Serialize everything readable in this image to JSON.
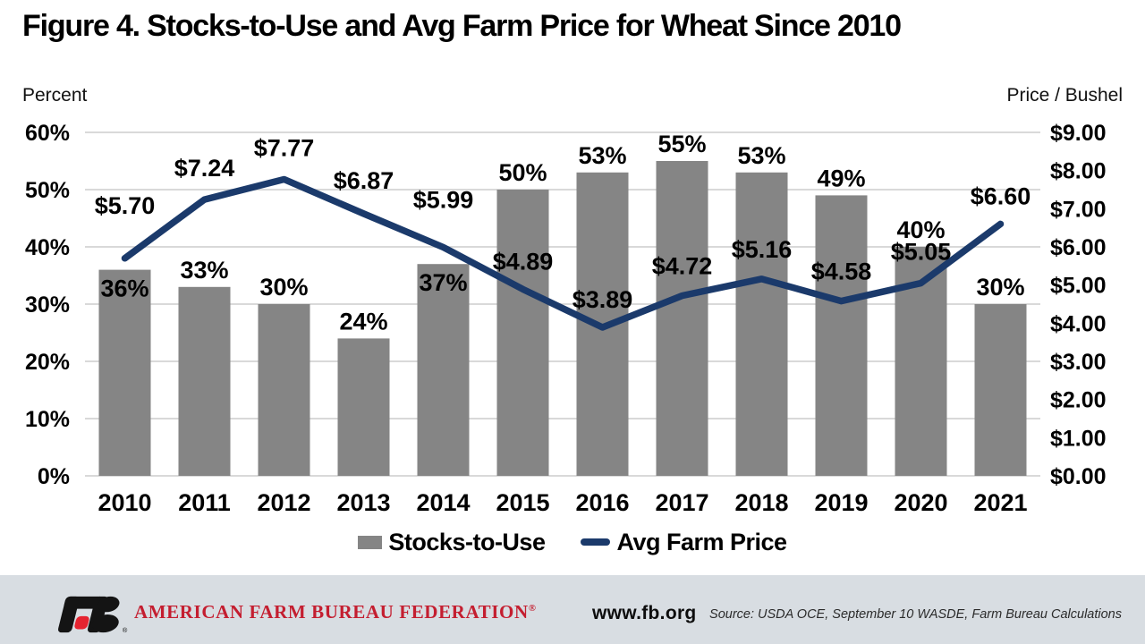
{
  "title": "Figure 4. Stocks-to-Use and Avg Farm Price for Wheat Since 2010",
  "axes": {
    "left_unit": "Percent",
    "right_unit": "Price / Bushel",
    "left_ticks": [
      "60%",
      "50%",
      "40%",
      "30%",
      "20%",
      "10%",
      "0%"
    ],
    "right_ticks": [
      "$9.00",
      "$8.00",
      "$7.00",
      "$6.00",
      "$5.00",
      "$4.00",
      "$3.00",
      "$2.00",
      "$1.00",
      "$0.00"
    ]
  },
  "chart_data": {
    "type": "bar+line combo",
    "title": "Figure 4. Stocks-to-Use and Avg Farm Price for Wheat Since 2010",
    "categories": [
      "2010",
      "2011",
      "2012",
      "2013",
      "2014",
      "2015",
      "2016",
      "2017",
      "2018",
      "2019",
      "2020",
      "2021"
    ],
    "series": [
      {
        "name": "Stocks-to-Use",
        "type": "bar",
        "axis": "left",
        "values": [
          36,
          33,
          30,
          24,
          37,
          50,
          53,
          55,
          53,
          49,
          40,
          30
        ],
        "labels": [
          "36%",
          "33%",
          "30%",
          "24%",
          "37%",
          "50%",
          "53%",
          "55%",
          "53%",
          "49%",
          "40%",
          "30%"
        ],
        "color": "#858585"
      },
      {
        "name": "Avg Farm Price",
        "type": "line",
        "axis": "right",
        "values": [
          5.7,
          7.24,
          7.77,
          6.87,
          5.99,
          4.89,
          3.89,
          4.72,
          5.16,
          4.58,
          5.05,
          6.6
        ],
        "labels": [
          "$5.70",
          "$7.24",
          "$7.77",
          "$6.87",
          "$5.99",
          "$4.89",
          "$3.89",
          "$4.72",
          "$5.16",
          "$4.58",
          "$5.05",
          "$6.60"
        ],
        "color": "#1b3a6b"
      }
    ],
    "ylabel_left": "Percent",
    "ylabel_right": "Price / Bushel",
    "ylim_left": [
      0,
      60
    ],
    "ylim_right": [
      0,
      9
    ],
    "grid": true,
    "legend_position": "bottom",
    "layout_hints": {
      "inside_bar_label_indices": [
        0,
        4
      ],
      "price_label_dy": [
        -50,
        -26,
        -26,
        -28,
        -44,
        -22,
        -22,
        -24,
        -24,
        -24,
        -26,
        -22
      ]
    }
  },
  "legend": {
    "items": [
      {
        "label": "Stocks-to-Use",
        "swatch": "bar"
      },
      {
        "label": "Avg Farm Price",
        "swatch": "line"
      }
    ]
  },
  "footer": {
    "org_display": "AMERICAN FARM BUREAU FEDERATION",
    "reg_mark": "®",
    "logo_reg_mark": "®",
    "site": "www.fb.org",
    "source": "Source: USDA OCE, September 10 WASDE, Farm Bureau Calculations"
  },
  "colors": {
    "bar": "#858585",
    "line": "#1b3a6b",
    "grid": "#d9d9d9",
    "footer_bg": "#d8dde2",
    "brand_red": "#c41e30",
    "logo_black": "#141414",
    "logo_red": "#e52330"
  }
}
